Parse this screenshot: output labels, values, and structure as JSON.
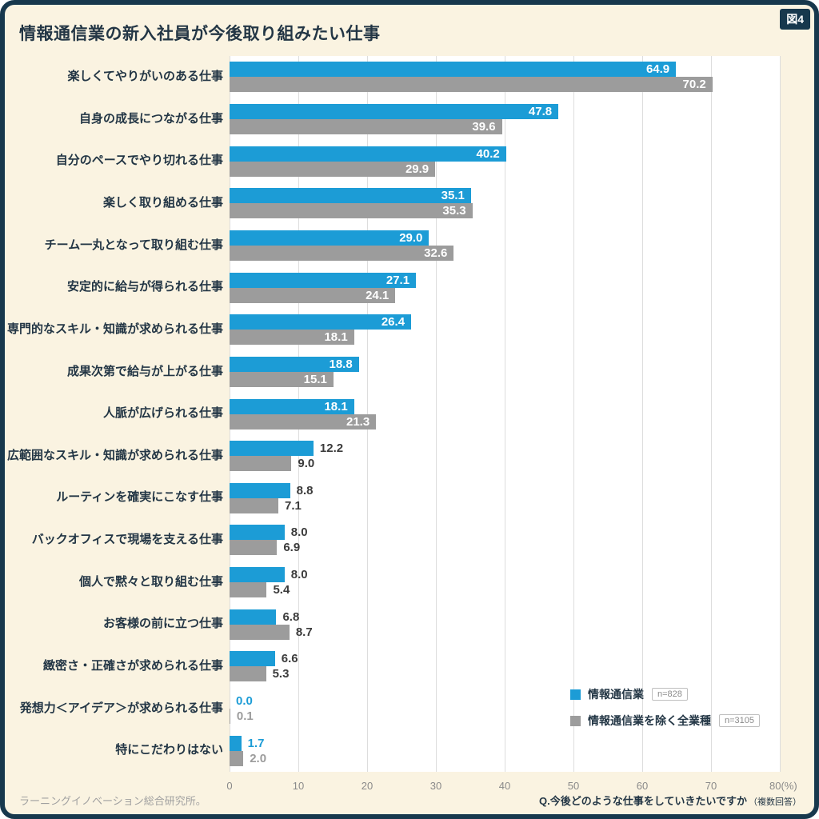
{
  "figure_tag": "図4",
  "title": "情報通信業の新入社員が今後取り組みたい仕事",
  "colors": {
    "background": "#FAF3E1",
    "frame": "#17384D",
    "primary": "#1C9CD6",
    "secondary": "#9C9C9C",
    "grid": "#DDDDDD"
  },
  "legend": [
    {
      "label": "情報通信業",
      "n": "n=828",
      "color": "#1C9CD6"
    },
    {
      "label": "情報通信業を除く全業種",
      "n": "n=3105",
      "color": "#9C9C9C"
    }
  ],
  "chart_data": {
    "type": "bar",
    "orientation": "horizontal",
    "title": "情報通信業の新入社員が今後取り組みたい仕事",
    "xlabel": "(%)",
    "xlim": [
      0,
      80
    ],
    "x_ticks": [
      0,
      10,
      20,
      30,
      40,
      50,
      60,
      70,
      80
    ],
    "x_tick_labels": [
      "0",
      "10",
      "20",
      "30",
      "40",
      "50",
      "60",
      "70",
      "80(%)"
    ],
    "grid": true,
    "legend_position": "bottom-right-inside",
    "categories": [
      "楽しくてやりがいのある仕事",
      "自身の成長につながる仕事",
      "自分のペースでやり切れる仕事",
      "楽しく取り組める仕事",
      "チーム一丸となって取り組む仕事",
      "安定的に給与が得られる仕事",
      "専門的なスキル・知識が求められる仕事",
      "成果次第で給与が上がる仕事",
      "人脈が広げられる仕事",
      "広範囲なスキル・知識が求められる仕事",
      "ルーティンを確実にこなす仕事",
      "バックオフィスで現場を支える仕事",
      "個人で黙々と取り組む仕事",
      "お客様の前に立つ仕事",
      "緻密さ・正確さが求められる仕事",
      "発想力＜アイデア＞が求められる仕事",
      "特にこだわりはない"
    ],
    "series": [
      {
        "name": "情報通信業",
        "color": "#1C9CD6",
        "values": [
          64.9,
          47.8,
          40.2,
          35.1,
          29.0,
          27.1,
          26.4,
          18.8,
          18.1,
          12.2,
          8.8,
          8.0,
          8.0,
          6.8,
          6.6,
          0.0,
          1.7
        ]
      },
      {
        "name": "情報通信業を除く全業種",
        "color": "#9C9C9C",
        "values": [
          70.2,
          39.6,
          29.9,
          35.3,
          32.6,
          24.1,
          18.1,
          15.1,
          21.3,
          9.0,
          7.1,
          6.9,
          5.4,
          8.7,
          5.3,
          0.1,
          2.0
        ]
      }
    ]
  },
  "footer": {
    "source": "ラーニングイノベーション総合研究所。",
    "question": "Q.今後どのような仕事をしていきたいですか",
    "note": "（複数回答）"
  }
}
